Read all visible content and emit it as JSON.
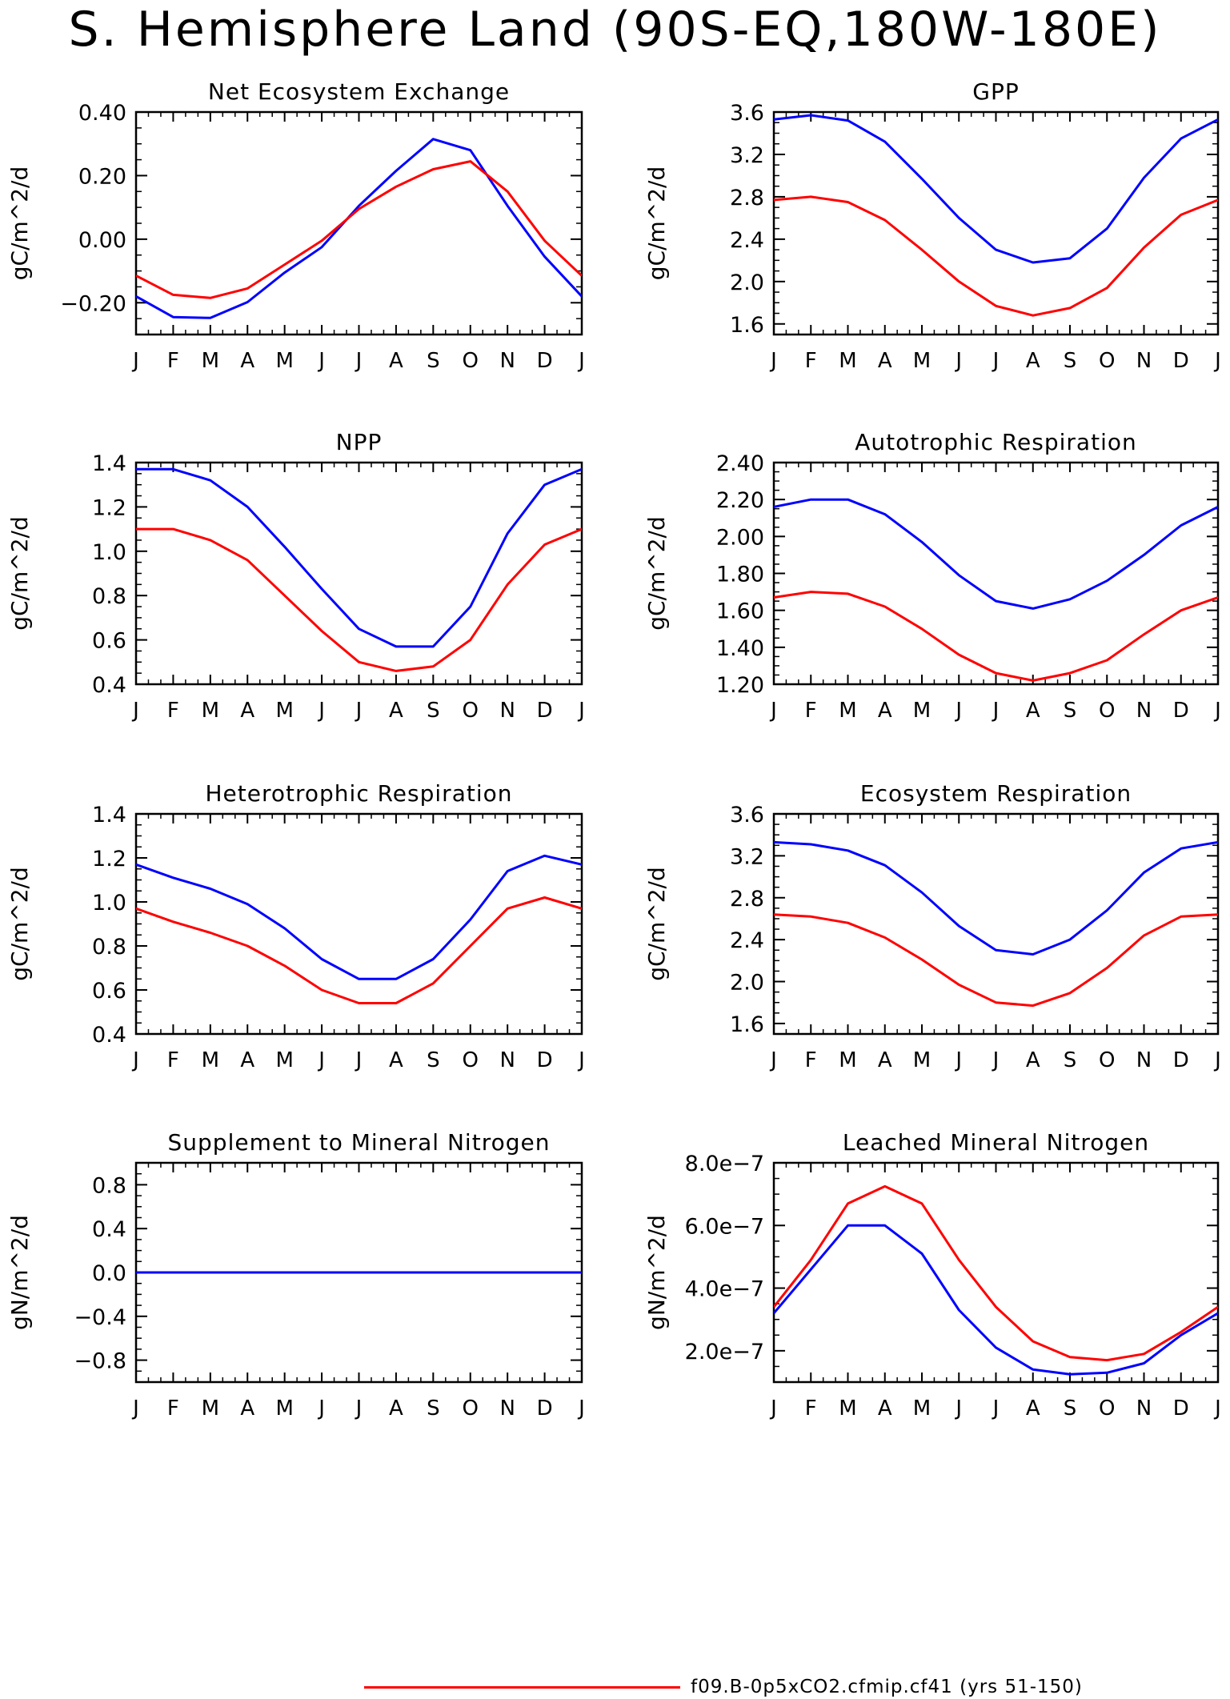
{
  "title": "S. Hemisphere Land (90S-EQ,180W-180E)",
  "months": [
    "J",
    "F",
    "M",
    "A",
    "M",
    "J",
    "J",
    "A",
    "S",
    "O",
    "N",
    "D",
    "J"
  ],
  "colors": {
    "series_red": "#ff0000",
    "series_blue": "#0000ff",
    "axis": "#000000"
  },
  "legend": [
    {
      "label": "f09.B-0p5xCO2.cfmip.cf41 (yrs 51-150)",
      "color": "#ff0000"
    }
  ],
  "chart_data": [
    {
      "type": "line",
      "title": "Net Ecosystem Exchange",
      "ylabel": "gC/m^2/d",
      "ylim": [
        -0.3,
        0.4
      ],
      "yticks": [
        -0.2,
        0.0,
        0.2,
        0.4
      ],
      "yticklabels": [
        "-0.20",
        "0.00",
        "0.20",
        "0.40"
      ],
      "series": [
        {
          "color": "#0000ff",
          "values": [
            -0.18,
            -0.245,
            -0.248,
            -0.198,
            -0.105,
            -0.025,
            0.105,
            0.215,
            0.315,
            0.28,
            0.105,
            -0.055,
            -0.18
          ]
        },
        {
          "color": "#ff0000",
          "values": [
            -0.115,
            -0.175,
            -0.185,
            -0.155,
            -0.08,
            -0.005,
            0.095,
            0.165,
            0.22,
            0.245,
            0.15,
            -0.005,
            -0.115
          ]
        }
      ]
    },
    {
      "type": "line",
      "title": "GPP",
      "ylabel": "gC/m^2/d",
      "ylim": [
        1.5,
        3.6
      ],
      "yticks": [
        1.6,
        2.0,
        2.4,
        2.8,
        3.2,
        3.6
      ],
      "yticklabels": [
        "1.6",
        "2.0",
        "2.4",
        "2.8",
        "3.2",
        "3.6"
      ],
      "series": [
        {
          "color": "#0000ff",
          "values": [
            3.53,
            3.57,
            3.52,
            3.32,
            2.97,
            2.6,
            2.3,
            2.18,
            2.22,
            2.5,
            2.98,
            3.35,
            3.53
          ]
        },
        {
          "color": "#ff0000",
          "values": [
            2.77,
            2.8,
            2.75,
            2.58,
            2.3,
            2.0,
            1.77,
            1.68,
            1.75,
            1.94,
            2.32,
            2.63,
            2.77
          ]
        }
      ]
    },
    {
      "type": "line",
      "title": "NPP",
      "ylabel": "gC/m^2/d",
      "ylim": [
        0.4,
        1.4
      ],
      "yticks": [
        0.4,
        0.6,
        0.8,
        1.0,
        1.2,
        1.4
      ],
      "yticklabels": [
        "0.4",
        "0.6",
        "0.8",
        "1.0",
        "1.2",
        "1.4"
      ],
      "series": [
        {
          "color": "#0000ff",
          "values": [
            1.37,
            1.37,
            1.32,
            1.2,
            1.02,
            0.83,
            0.65,
            0.57,
            0.57,
            0.75,
            1.08,
            1.3,
            1.37
          ]
        },
        {
          "color": "#ff0000",
          "values": [
            1.1,
            1.1,
            1.05,
            0.96,
            0.8,
            0.64,
            0.5,
            0.46,
            0.48,
            0.6,
            0.85,
            1.03,
            1.1
          ]
        }
      ]
    },
    {
      "type": "line",
      "title": "Autotrophic Respiration",
      "ylabel": "gC/m^2/d",
      "ylim": [
        1.2,
        2.4
      ],
      "yticks": [
        1.2,
        1.4,
        1.6,
        1.8,
        2.0,
        2.2,
        2.4
      ],
      "yticklabels": [
        "1.20",
        "1.40",
        "1.60",
        "1.80",
        "2.00",
        "2.20",
        "2.40"
      ],
      "series": [
        {
          "color": "#0000ff",
          "values": [
            2.16,
            2.2,
            2.2,
            2.12,
            1.97,
            1.79,
            1.65,
            1.61,
            1.66,
            1.76,
            1.9,
            2.06,
            2.16
          ]
        },
        {
          "color": "#ff0000",
          "values": [
            1.67,
            1.7,
            1.69,
            1.62,
            1.5,
            1.36,
            1.26,
            1.22,
            1.26,
            1.33,
            1.47,
            1.6,
            1.67
          ]
        }
      ]
    },
    {
      "type": "line",
      "title": "Heterotrophic Respiration",
      "ylabel": "gC/m^2/d",
      "ylim": [
        0.4,
        1.4
      ],
      "yticks": [
        0.4,
        0.6,
        0.8,
        1.0,
        1.2,
        1.4
      ],
      "yticklabels": [
        "0.4",
        "0.6",
        "0.8",
        "1.0",
        "1.2",
        "1.4"
      ],
      "series": [
        {
          "color": "#0000ff",
          "values": [
            1.17,
            1.11,
            1.06,
            0.99,
            0.88,
            0.74,
            0.65,
            0.65,
            0.74,
            0.92,
            1.14,
            1.21,
            1.17
          ]
        },
        {
          "color": "#ff0000",
          "values": [
            0.97,
            0.91,
            0.86,
            0.8,
            0.71,
            0.6,
            0.54,
            0.54,
            0.63,
            0.8,
            0.97,
            1.02,
            0.97
          ]
        }
      ]
    },
    {
      "type": "line",
      "title": "Ecosystem Respiration",
      "ylabel": "gC/m^2/d",
      "ylim": [
        1.5,
        3.6
      ],
      "yticks": [
        1.6,
        2.0,
        2.4,
        2.8,
        3.2,
        3.6
      ],
      "yticklabels": [
        "1.6",
        "2.0",
        "2.4",
        "2.8",
        "3.2",
        "3.6"
      ],
      "series": [
        {
          "color": "#0000ff",
          "values": [
            3.33,
            3.31,
            3.25,
            3.11,
            2.85,
            2.53,
            2.3,
            2.26,
            2.4,
            2.68,
            3.04,
            3.27,
            3.33
          ]
        },
        {
          "color": "#ff0000",
          "values": [
            2.64,
            2.62,
            2.56,
            2.42,
            2.21,
            1.97,
            1.8,
            1.77,
            1.89,
            2.13,
            2.44,
            2.62,
            2.64
          ]
        }
      ]
    },
    {
      "type": "line",
      "title": "Supplement to Mineral Nitrogen",
      "ylabel": "gN/m^2/d",
      "ylim": [
        -1.0,
        1.0
      ],
      "yticks": [
        -0.8,
        -0.4,
        0.0,
        0.4,
        0.8
      ],
      "yticklabels": [
        "-0.8",
        "-0.4",
        "0.0",
        "0.4",
        "0.8"
      ],
      "series": [
        {
          "color": "#ff0000",
          "values": [
            0,
            0,
            0,
            0,
            0,
            0,
            0,
            0,
            0,
            0,
            0,
            0,
            0
          ]
        },
        {
          "color": "#0000ff",
          "values": [
            0,
            0,
            0,
            0,
            0,
            0,
            0,
            0,
            0,
            0,
            0,
            0,
            0
          ]
        }
      ]
    },
    {
      "type": "line",
      "title": "Leached Mineral Nitrogen",
      "ylabel": "gN/m^2/d",
      "ylim": [
        1e-07,
        8e-07
      ],
      "yticks": [
        2e-07,
        4e-07,
        6e-07,
        8e-07
      ],
      "yticklabels": [
        "2.0e-7",
        "4.0e-7",
        "6.0e-7",
        "8.0e-7"
      ],
      "series": [
        {
          "color": "#0000ff",
          "values": [
            3.2e-07,
            4.6e-07,
            6e-07,
            6e-07,
            5.1e-07,
            3.3e-07,
            2.1e-07,
            1.4e-07,
            1.25e-07,
            1.3e-07,
            1.6e-07,
            2.5e-07,
            3.2e-07
          ]
        },
        {
          "color": "#ff0000",
          "values": [
            3.4e-07,
            4.9e-07,
            6.7e-07,
            7.25e-07,
            6.7e-07,
            4.9e-07,
            3.4e-07,
            2.3e-07,
            1.8e-07,
            1.7e-07,
            1.9e-07,
            2.6e-07,
            3.4e-07
          ]
        }
      ]
    }
  ]
}
